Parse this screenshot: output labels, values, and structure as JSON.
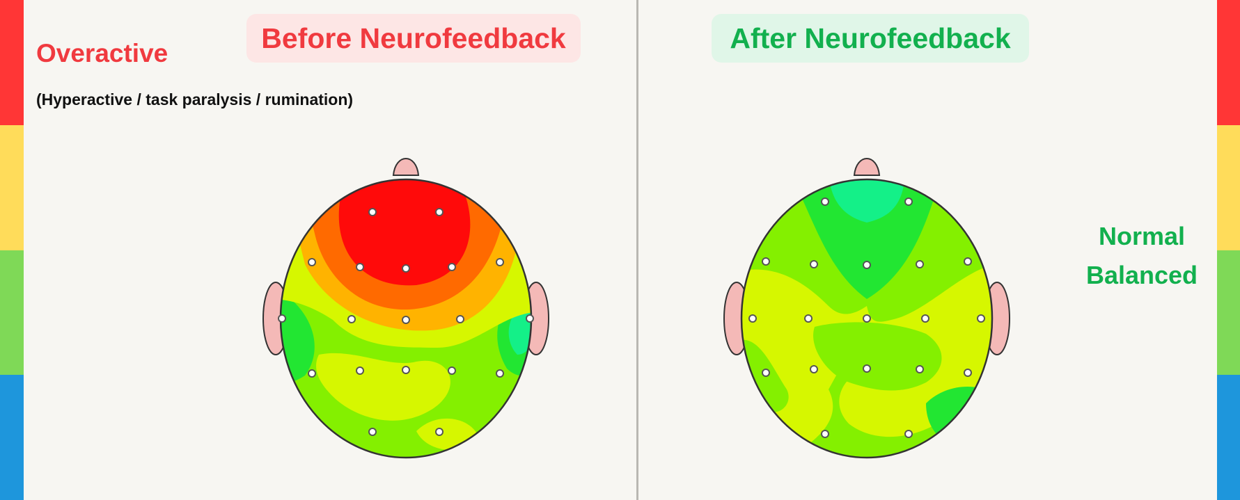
{
  "panels": {
    "before": {
      "title": "Before Neurofeedback",
      "title_color": "#f03a3f",
      "pill_bg": "#fde6e5",
      "state_label": "Overactive",
      "state_color": "#f03a3f",
      "state_description": "(Hyperactive / task paralysis / rumination)"
    },
    "after": {
      "title": "After Neurofeedback",
      "title_color": "#12b04e",
      "pill_bg": "#e0f6e8",
      "state_label_line1": "Normal",
      "state_label_line2": "Balanced",
      "state_color": "#12b04e"
    }
  },
  "color_scale": {
    "segments": [
      "#ff3636",
      "#ffdc5a",
      "#7fd957",
      "#1e96dc"
    ]
  },
  "colors": {
    "map_red": "#ff0a0a",
    "map_orange": "#ff6a00",
    "map_amber": "#ffb300",
    "map_yellow_green": "#d6f700",
    "map_green": "#84f000",
    "map_bright_green": "#22e632",
    "map_teal": "#14f088",
    "skin": "#f4b9b7"
  },
  "icons": {
    "before_map": "brain-topography-map-before",
    "after_map": "brain-topography-map-after"
  }
}
